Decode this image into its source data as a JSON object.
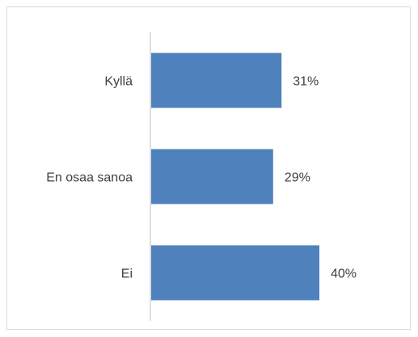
{
  "chart_data": {
    "type": "bar",
    "orientation": "horizontal",
    "categories": [
      "Kyllä",
      "En osaa sanoa",
      "Ei"
    ],
    "values": [
      31,
      29,
      40
    ],
    "value_labels": [
      "31%",
      "29%",
      "40%"
    ],
    "unit": "%",
    "title": "",
    "xlabel": "",
    "ylabel": "",
    "xlim": [
      0,
      60
    ],
    "grid": false,
    "legend": "none",
    "bar_color": "#4f81bd"
  }
}
